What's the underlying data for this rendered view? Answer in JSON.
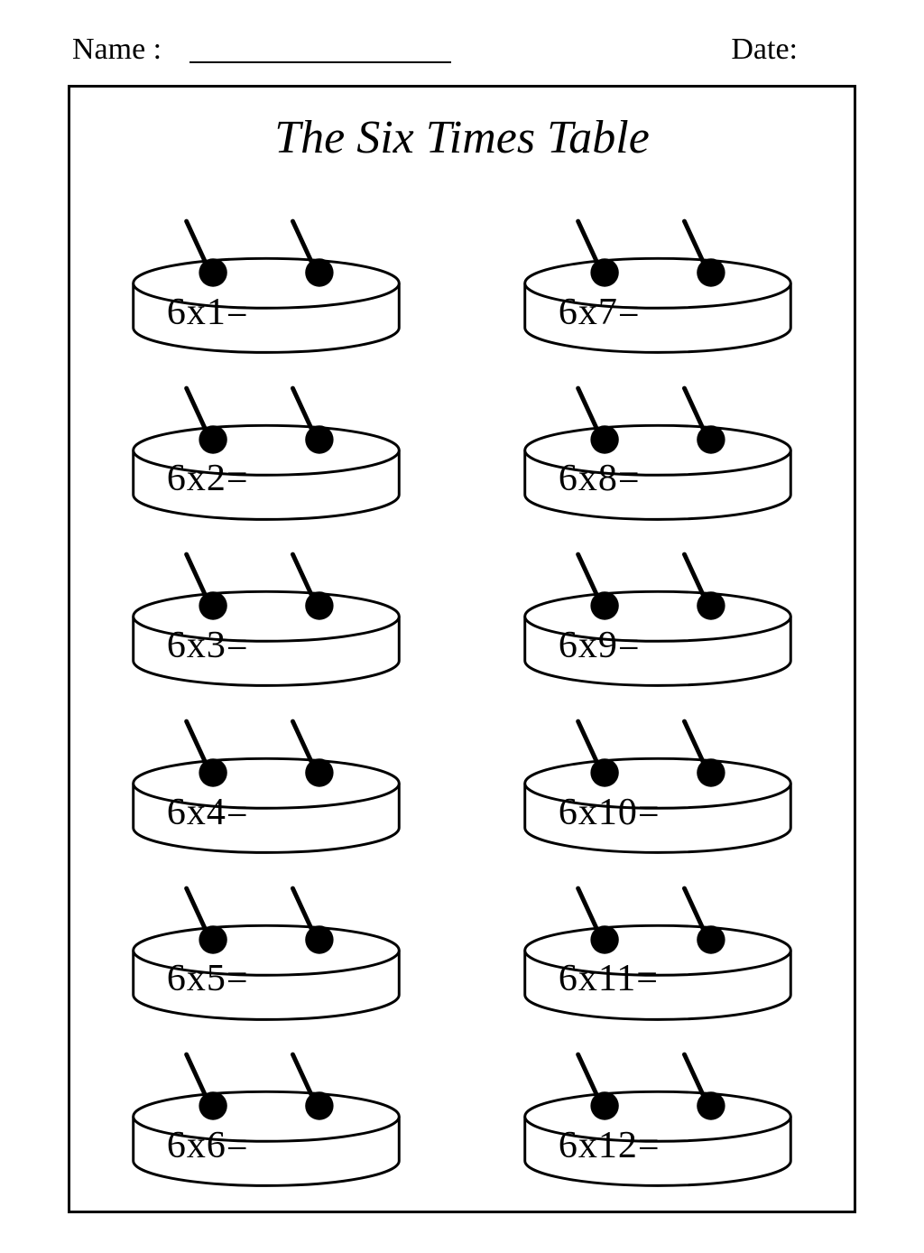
{
  "header": {
    "name_label": "Name :",
    "date_label": "Date:"
  },
  "title": "The Six Times Table",
  "worksheet": {
    "type": "infographic",
    "multiplier": 6,
    "layout": "2-column x 6-row grid of drum shapes with antennae",
    "cells": [
      {
        "row": 0,
        "col": 0,
        "expression": "6x1="
      },
      {
        "row": 1,
        "col": 0,
        "expression": "6x2="
      },
      {
        "row": 2,
        "col": 0,
        "expression": "6x3="
      },
      {
        "row": 3,
        "col": 0,
        "expression": "6x4="
      },
      {
        "row": 4,
        "col": 0,
        "expression": "6x5="
      },
      {
        "row": 5,
        "col": 0,
        "expression": "6x6="
      },
      {
        "row": 0,
        "col": 1,
        "expression": "6x7="
      },
      {
        "row": 1,
        "col": 1,
        "expression": "6x8="
      },
      {
        "row": 2,
        "col": 1,
        "expression": "6x9="
      },
      {
        "row": 3,
        "col": 1,
        "expression": "6x10="
      },
      {
        "row": 4,
        "col": 1,
        "expression": "6x11="
      },
      {
        "row": 5,
        "col": 1,
        "expression": "6x12="
      }
    ],
    "style": {
      "stroke_color": "#000000",
      "fill_color": "#ffffff",
      "stroke_width": 3,
      "dot_fill": "#000000",
      "dot_radius": 16,
      "stick_width": 5,
      "equation_fontsize": 42,
      "title_fontsize": 52,
      "header_fontsize": 34,
      "background_color": "#ffffff",
      "frame_border": "3px solid #000"
    }
  }
}
